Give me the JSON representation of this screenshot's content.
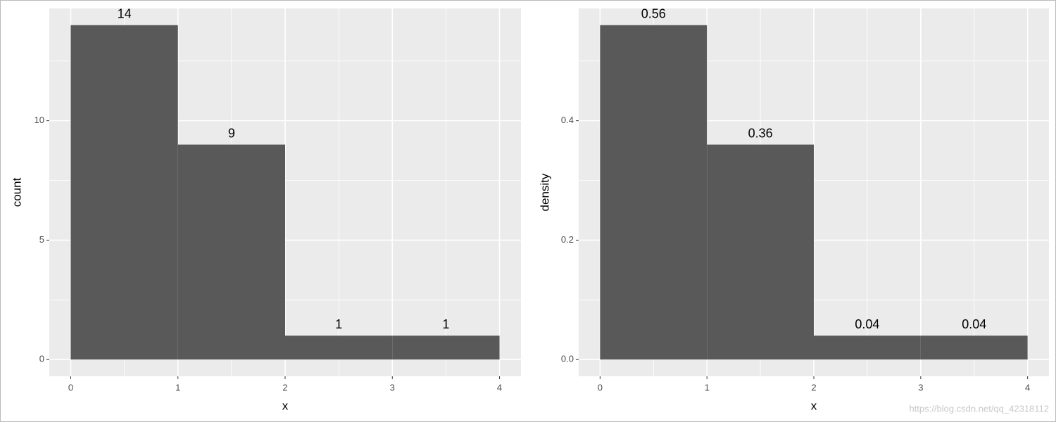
{
  "chart_data": [
    {
      "type": "histogram",
      "xlabel": "x",
      "ylabel": "count",
      "bins": [
        0,
        1,
        2,
        3,
        4
      ],
      "values": [
        14,
        9,
        1,
        1
      ],
      "color": "#595959",
      "xlim": [
        -0.2,
        4.2
      ],
      "xticks": [
        0,
        1,
        2,
        3,
        4
      ],
      "ylim": [
        -0.7,
        14.7
      ],
      "yticks": [
        0,
        5,
        10
      ],
      "grid": true
    },
    {
      "type": "histogram",
      "xlabel": "x",
      "ylabel": "density",
      "bins": [
        0,
        1,
        2,
        3,
        4
      ],
      "values": [
        0.56,
        0.36,
        0.04,
        0.04
      ],
      "color": "#595959",
      "xlim": [
        -0.2,
        4.2
      ],
      "xticks": [
        0,
        1,
        2,
        3,
        4
      ],
      "ylim": [
        -0.028,
        0.588
      ],
      "yticks": [
        {
          "value": 0,
          "label": "0.0"
        },
        {
          "value": 0.2,
          "label": "0.2"
        },
        {
          "value": 0.4,
          "label": "0.4"
        }
      ],
      "grid": true
    }
  ],
  "watermark": "https://blog.csdn.net/qq_42318112"
}
